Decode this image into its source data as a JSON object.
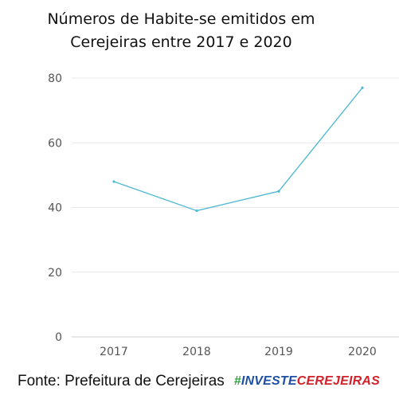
{
  "chart_data": {
    "type": "line",
    "title_line1": "Números de Habite-se emitidos em",
    "title_line2": "Cerejeiras entre 2017 e 2020",
    "categories": [
      "2017",
      "2018",
      "2019",
      "2020"
    ],
    "series": [
      {
        "values": [
          48,
          39,
          45,
          77
        ]
      }
    ],
    "ylim": [
      0,
      80
    ],
    "yticks": [
      0,
      20,
      40,
      60,
      80
    ],
    "grid": true,
    "colors": {
      "line": "#4db8d1",
      "grid": "#e8e8e8",
      "tick": "#555555"
    }
  },
  "footer": {
    "source": "Fonte: Prefeitura de Cerejeiras",
    "brand_hash": "#",
    "brand_part1": "INVESTE",
    "brand_part2": "CEREJEIRAS"
  }
}
